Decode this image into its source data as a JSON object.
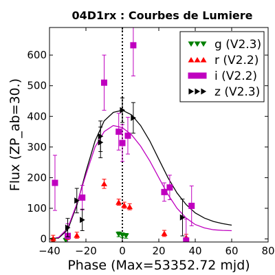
{
  "chart_data": {
    "type": "scatter",
    "title": "04D1rx : Courbes de Lumiere",
    "xlabel": "Phase (Max=53352.72 mjd)",
    "ylabel": "Flux (ZP_ab=30.)",
    "xlim": [
      -40,
      80
    ],
    "ylim": [
      -10,
      690
    ],
    "xticks": [
      -40,
      -20,
      0,
      20,
      40,
      60,
      80
    ],
    "yticks": [
      0,
      100,
      200,
      300,
      400,
      500,
      600
    ],
    "max_line_x": 0,
    "legend_position": "top-right",
    "series": [
      {
        "name": "g (V2.3)",
        "color": "#008000",
        "marker": "triangle-down",
        "points": [
          {
            "x": -38,
            "y": -5,
            "err": 8
          },
          {
            "x": -31,
            "y": -5,
            "err": 8
          },
          {
            "x": -2,
            "y": 15,
            "err": 8
          },
          {
            "x": 0,
            "y": 12,
            "err": 8
          },
          {
            "x": 2,
            "y": 10,
            "err": 8
          }
        ]
      },
      {
        "name": "r (V2.2)",
        "color": "#ff0000",
        "marker": "triangle-up",
        "points": [
          {
            "x": -38,
            "y": 2,
            "err": 10
          },
          {
            "x": -30,
            "y": 8,
            "err": 10
          },
          {
            "x": -25,
            "y": 12,
            "err": 10
          },
          {
            "x": -10,
            "y": 180,
            "err": 15
          },
          {
            "x": -2,
            "y": 120,
            "err": 10
          },
          {
            "x": 1,
            "y": 110,
            "err": 10
          },
          {
            "x": 4,
            "y": 105,
            "err": 10
          },
          {
            "x": 23,
            "y": 18,
            "err": 10
          },
          {
            "x": 35,
            "y": 5,
            "err": 10
          }
        ]
      },
      {
        "name": "i (V2.2)",
        "color": "#bf00bf",
        "marker": "square",
        "points": [
          {
            "x": -37,
            "y": 183,
            "err": 90
          },
          {
            "x": -30,
            "y": 10,
            "err": 40
          },
          {
            "x": -22,
            "y": 135,
            "err": 40
          },
          {
            "x": -10,
            "y": 510,
            "err": 90
          },
          {
            "x": -2,
            "y": 350,
            "err": 60
          },
          {
            "x": 0,
            "y": 313,
            "err": 60
          },
          {
            "x": 3,
            "y": 337,
            "err": 60
          },
          {
            "x": 6,
            "y": 632,
            "err": 100
          },
          {
            "x": 23,
            "y": 153,
            "err": 30
          },
          {
            "x": 26,
            "y": 168,
            "err": 40
          },
          {
            "x": 35,
            "y": -5,
            "err": 70
          },
          {
            "x": 38,
            "y": 108,
            "err": 65
          }
        ]
      },
      {
        "name": "z (V2.3)",
        "color": "#000000",
        "marker": "triangle-right",
        "points": [
          {
            "x": -30,
            "y": 37,
            "err": 30
          },
          {
            "x": -25,
            "y": 125,
            "err": 40
          },
          {
            "x": -22,
            "y": 62,
            "err": 35
          },
          {
            "x": -12,
            "y": 335,
            "err": 50
          },
          {
            "x": -12,
            "y": 315,
            "err": 50
          },
          {
            "x": 0,
            "y": 420,
            "err": 40
          },
          {
            "x": 6,
            "y": 395,
            "err": 50
          },
          {
            "x": 33,
            "y": 70,
            "err": 60
          }
        ]
      }
    ],
    "model_curves": [
      {
        "color": "#000000",
        "points": [
          [
            -40,
            0
          ],
          [
            -35,
            3
          ],
          [
            -30,
            30
          ],
          [
            -25,
            110
          ],
          [
            -20,
            220
          ],
          [
            -15,
            320
          ],
          [
            -10,
            385
          ],
          [
            -5,
            413
          ],
          [
            0,
            420
          ],
          [
            5,
            405
          ],
          [
            10,
            370
          ],
          [
            15,
            320
          ],
          [
            20,
            260
          ],
          [
            25,
            200
          ],
          [
            30,
            150
          ],
          [
            35,
            112
          ],
          [
            40,
            85
          ],
          [
            45,
            68
          ],
          [
            50,
            57
          ],
          [
            55,
            50
          ],
          [
            60,
            45
          ]
        ]
      },
      {
        "color": "#bf00bf",
        "points": [
          [
            -40,
            0
          ],
          [
            -35,
            5
          ],
          [
            -30,
            35
          ],
          [
            -25,
            115
          ],
          [
            -20,
            210
          ],
          [
            -15,
            300
          ],
          [
            -10,
            350
          ],
          [
            -5,
            370
          ],
          [
            0,
            363
          ],
          [
            5,
            340
          ],
          [
            10,
            303
          ],
          [
            15,
            255
          ],
          [
            20,
            200
          ],
          [
            25,
            145
          ],
          [
            30,
            100
          ],
          [
            35,
            68
          ],
          [
            40,
            47
          ],
          [
            45,
            36
          ],
          [
            50,
            30
          ],
          [
            55,
            28
          ],
          [
            60,
            27
          ]
        ]
      }
    ]
  }
}
